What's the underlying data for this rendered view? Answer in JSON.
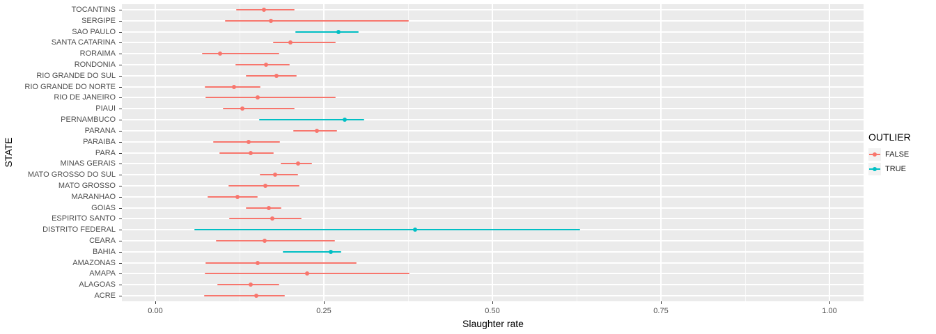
{
  "chart_data": {
    "type": "pointrange",
    "title": "",
    "xlabel": "Slaughter rate",
    "ylabel": "STATE",
    "legend_title": "OUTLIER",
    "legend_position": "right",
    "grid": true,
    "xlim": [
      0,
      1.0
    ],
    "x_major_ticks": [
      {
        "value": 0.0,
        "label": "0.00"
      },
      {
        "value": 0.25,
        "label": "0.25"
      },
      {
        "value": 0.5,
        "label": "0.50"
      },
      {
        "value": 0.75,
        "label": "0.75"
      },
      {
        "value": 1.0,
        "label": "1.00"
      }
    ],
    "x_minor_ticks": [
      0.125,
      0.375,
      0.625,
      0.875
    ],
    "legend": {
      "entries": [
        {
          "label": "FALSE",
          "color": "#F8766D"
        },
        {
          "label": "TRUE",
          "color": "#00BFC4"
        }
      ]
    },
    "colors": {
      "panel_bg": "#EBEBEB",
      "grid": "#FFFFFF",
      "outlier_false": "#F8766D",
      "outlier_true": "#00BFC4",
      "axis_text": "#4D4D4D",
      "legend_key_bg": "#F2F2F2"
    },
    "points": [
      {
        "state": "TOCANTINS",
        "low": 0.12,
        "mid": 0.161,
        "high": 0.207,
        "outlier": false
      },
      {
        "state": "SERGIPE",
        "low": 0.103,
        "mid": 0.171,
        "high": 0.376,
        "outlier": false
      },
      {
        "state": "SAO PAULO",
        "low": 0.208,
        "mid": 0.272,
        "high": 0.302,
        "outlier": true
      },
      {
        "state": "SANTA CATARINA",
        "low": 0.175,
        "mid": 0.2,
        "high": 0.268,
        "outlier": false
      },
      {
        "state": "RORAIMA",
        "low": 0.069,
        "mid": 0.096,
        "high": 0.184,
        "outlier": false
      },
      {
        "state": "RONDONIA",
        "low": 0.119,
        "mid": 0.164,
        "high": 0.2,
        "outlier": false
      },
      {
        "state": "RIO GRANDE DO SUL",
        "low": 0.134,
        "mid": 0.18,
        "high": 0.209,
        "outlier": false
      },
      {
        "state": "RIO GRANDE DO NORTE",
        "low": 0.073,
        "mid": 0.117,
        "high": 0.156,
        "outlier": false
      },
      {
        "state": "RIO DE JANEIRO",
        "low": 0.074,
        "mid": 0.152,
        "high": 0.267,
        "outlier": false
      },
      {
        "state": "PIAUI",
        "low": 0.1,
        "mid": 0.129,
        "high": 0.206,
        "outlier": false
      },
      {
        "state": "PERNAMBUCO",
        "low": 0.154,
        "mid": 0.281,
        "high": 0.31,
        "outlier": true
      },
      {
        "state": "PARANA",
        "low": 0.205,
        "mid": 0.24,
        "high": 0.27,
        "outlier": false
      },
      {
        "state": "PARAIBA",
        "low": 0.086,
        "mid": 0.138,
        "high": 0.185,
        "outlier": false
      },
      {
        "state": "PARA",
        "low": 0.095,
        "mid": 0.142,
        "high": 0.176,
        "outlier": false
      },
      {
        "state": "MINAS GERAIS",
        "low": 0.186,
        "mid": 0.212,
        "high": 0.233,
        "outlier": false
      },
      {
        "state": "MATO GROSSO DO SUL",
        "low": 0.155,
        "mid": 0.178,
        "high": 0.212,
        "outlier": false
      },
      {
        "state": "MATO GROSSO",
        "low": 0.108,
        "mid": 0.163,
        "high": 0.213,
        "outlier": false
      },
      {
        "state": "MARANHAO",
        "low": 0.077,
        "mid": 0.122,
        "high": 0.151,
        "outlier": false
      },
      {
        "state": "GOIAS",
        "low": 0.134,
        "mid": 0.168,
        "high": 0.187,
        "outlier": false
      },
      {
        "state": "ESPIRITO SANTO",
        "low": 0.11,
        "mid": 0.174,
        "high": 0.217,
        "outlier": false
      },
      {
        "state": "DISTRITO FEDERAL",
        "low": 0.058,
        "mid": 0.385,
        "high": 0.63,
        "outlier": true
      },
      {
        "state": "CEARA",
        "low": 0.09,
        "mid": 0.162,
        "high": 0.267,
        "outlier": false
      },
      {
        "state": "BAHIA",
        "low": 0.189,
        "mid": 0.26,
        "high": 0.276,
        "outlier": true
      },
      {
        "state": "AMAZONAS",
        "low": 0.074,
        "mid": 0.152,
        "high": 0.298,
        "outlier": false
      },
      {
        "state": "AMAPA",
        "low": 0.073,
        "mid": 0.225,
        "high": 0.377,
        "outlier": false
      },
      {
        "state": "ALAGOAS",
        "low": 0.092,
        "mid": 0.142,
        "high": 0.184,
        "outlier": false
      },
      {
        "state": "ACRE",
        "low": 0.072,
        "mid": 0.15,
        "high": 0.192,
        "outlier": false
      }
    ]
  }
}
